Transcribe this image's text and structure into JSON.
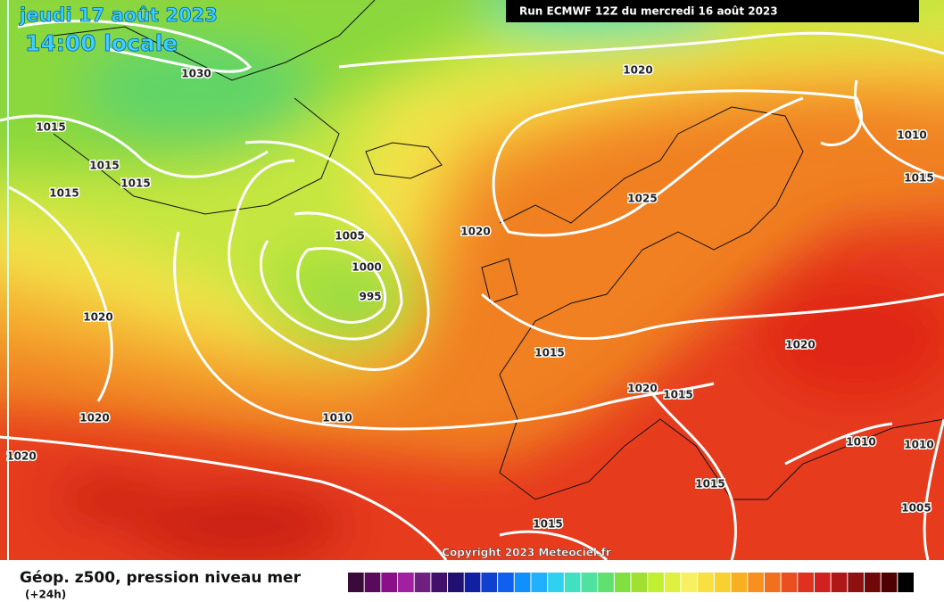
{
  "header": {
    "date": "jeudi 17 août 2023",
    "time": "14:00 locale",
    "run": "Run ECMWF 12Z du mercredi 16 août 2023"
  },
  "isobar_labels": [
    1030,
    1015,
    1015,
    1015,
    1015,
    1020,
    1010,
    1015,
    1025,
    1020,
    1005,
    1000,
    995,
    1020,
    1020,
    1015,
    1020,
    1015,
    1010,
    1020,
    1020,
    1010,
    1010,
    1015,
    1015,
    1005
  ],
  "copyright": "Copyright 2023 Meteociel.fr",
  "legend": {
    "title": "Géop. z500, pression niveau mer",
    "subtitle": "(+24h)"
  }
}
